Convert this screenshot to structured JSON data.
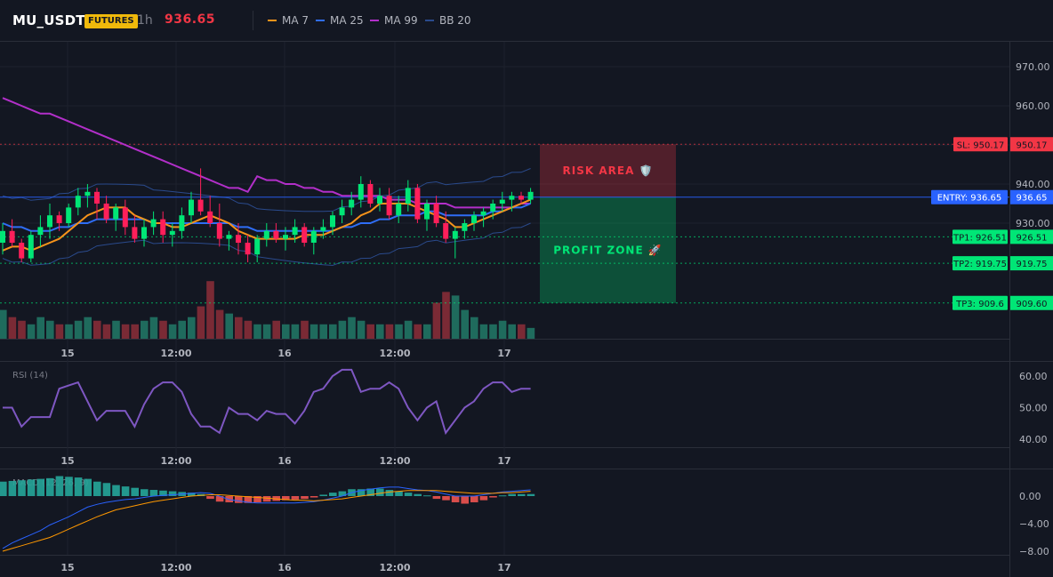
{
  "header": {
    "symbol": "MU_USDT",
    "badge": "FUTURES",
    "timeframe": "1h",
    "price": "936.65",
    "legend": [
      {
        "label": "MA 7",
        "color": "#f7931a"
      },
      {
        "label": "MA 25",
        "color": "#2f6df6"
      },
      {
        "label": "MA 99",
        "color": "#b22fc9"
      },
      {
        "label": "BB 20",
        "color": "#2a4a8c"
      }
    ]
  },
  "chart_data": {
    "type": "candlestick",
    "price_axis": {
      "ticks": [
        "970.00",
        "960.00",
        "950.00",
        "940.00",
        "930.00"
      ],
      "tick_values": [
        970,
        960,
        950,
        940,
        930
      ],
      "range": [
        909.6,
        972
      ]
    },
    "time_axis": {
      "labels": [
        "15",
        "12:00",
        "16",
        "12:00",
        "17"
      ]
    },
    "levels": [
      {
        "tag": "SL: 950.17",
        "value": "950.17",
        "price": 950.17,
        "color": "#f23645"
      },
      {
        "tag": "ENTRY: 936.65",
        "value": "936.65",
        "price": 936.65,
        "color": "#2962ff"
      },
      {
        "tag": "TP1: 926.51",
        "value": "926.51",
        "price": 926.51,
        "color": "#00e676"
      },
      {
        "tag": "TP2: 919.75",
        "value": "919.75",
        "price": 919.75,
        "color": "#00e676"
      },
      {
        "tag": "TP3: 909.6",
        "value": "909.60",
        "price": 909.6,
        "color": "#00e676"
      }
    ],
    "zones": [
      {
        "label": "RISK AREA 🛡️",
        "from": 936.65,
        "to": 950.17,
        "color": "#f23645"
      },
      {
        "label": "PROFIT ZONE 🚀",
        "from": 909.6,
        "to": 936.65,
        "color": "#00e676"
      }
    ],
    "candles": [
      [
        925,
        930,
        922,
        928
      ],
      [
        928,
        931,
        924,
        925
      ],
      [
        925,
        926,
        920,
        921
      ],
      [
        921,
        928,
        920,
        927
      ],
      [
        927,
        932,
        924,
        929
      ],
      [
        929,
        935,
        926,
        932
      ],
      [
        932,
        933,
        928,
        930
      ],
      [
        930,
        935,
        929,
        934
      ],
      [
        934,
        939,
        932,
        937
      ],
      [
        937,
        940,
        934,
        938
      ],
      [
        938,
        939,
        931,
        935
      ],
      [
        935,
        937,
        930,
        931
      ],
      [
        931,
        935,
        928,
        934
      ],
      [
        934,
        936,
        927,
        929
      ],
      [
        929,
        932,
        925,
        926
      ],
      [
        926,
        931,
        924,
        929
      ],
      [
        929,
        933,
        927,
        931
      ],
      [
        931,
        933,
        925,
        927
      ],
      [
        927,
        930,
        924,
        928
      ],
      [
        928,
        934,
        926,
        932
      ],
      [
        932,
        938,
        930,
        936
      ],
      [
        936,
        944,
        932,
        933
      ],
      [
        933,
        937,
        929,
        930
      ],
      [
        930,
        935,
        924,
        926
      ],
      [
        926,
        928,
        923,
        927
      ],
      [
        927,
        930,
        922,
        925
      ],
      [
        925,
        927,
        920,
        922
      ],
      [
        922,
        927,
        920,
        926
      ],
      [
        926,
        930,
        924,
        928
      ],
      [
        928,
        930,
        925,
        926
      ],
      [
        926,
        929,
        923,
        927
      ],
      [
        927,
        931,
        925,
        929
      ],
      [
        929,
        930,
        924,
        925
      ],
      [
        925,
        929,
        922,
        928
      ],
      [
        928,
        931,
        926,
        929
      ],
      [
        929,
        933,
        927,
        932
      ],
      [
        932,
        936,
        930,
        934
      ],
      [
        934,
        938,
        932,
        936
      ],
      [
        936,
        942,
        934,
        940
      ],
      [
        940,
        941,
        934,
        935
      ],
      [
        935,
        939,
        933,
        937
      ],
      [
        937,
        939,
        931,
        932
      ],
      [
        932,
        937,
        930,
        935
      ],
      [
        935,
        941,
        933,
        939
      ],
      [
        939,
        940,
        930,
        931
      ],
      [
        931,
        936,
        928,
        935
      ],
      [
        935,
        937,
        929,
        930
      ],
      [
        930,
        933,
        925,
        926
      ],
      [
        926,
        929,
        921,
        928
      ],
      [
        928,
        931,
        926,
        930
      ],
      [
        930,
        933,
        928,
        932
      ],
      [
        932,
        934,
        929,
        933
      ],
      [
        933,
        936,
        931,
        935
      ],
      [
        935,
        938,
        933,
        936
      ],
      [
        936,
        938,
        933,
        937
      ],
      [
        937,
        938,
        935,
        936
      ],
      [
        936,
        939,
        935,
        938
      ]
    ],
    "ma7": [
      923,
      924,
      924,
      923,
      924,
      925,
      926,
      928,
      930,
      932,
      933,
      934,
      934,
      934,
      932,
      931,
      930,
      930,
      929,
      929,
      930,
      931,
      932,
      931,
      930,
      928,
      927,
      926,
      926,
      926,
      926,
      926,
      927,
      927,
      927,
      928,
      929,
      930,
      932,
      933,
      935,
      935,
      935,
      935,
      934,
      933,
      932,
      931,
      929,
      929,
      930,
      931,
      932,
      933,
      934,
      935,
      936
    ],
    "ma25": [
      930,
      929,
      929,
      928,
      928,
      928,
      929,
      929,
      930,
      930,
      931,
      931,
      931,
      931,
      931,
      931,
      930,
      930,
      930,
      930,
      930,
      930,
      930,
      930,
      930,
      929,
      929,
      928,
      928,
      928,
      928,
      928,
      928,
      928,
      928,
      928,
      929,
      929,
      930,
      930,
      931,
      931,
      932,
      932,
      932,
      933,
      933,
      932,
      932,
      932,
      932,
      932,
      933,
      933,
      934,
      934,
      935
    ],
    "ma99": [
      962,
      961,
      960,
      959,
      958,
      958,
      957,
      956,
      955,
      954,
      953,
      952,
      951,
      950,
      949,
      948,
      947,
      946,
      945,
      944,
      943,
      942,
      941,
      940,
      939,
      939,
      938,
      942,
      941,
      941,
      940,
      940,
      939,
      939,
      938,
      938,
      937,
      937,
      937,
      937,
      937,
      936,
      936,
      936,
      935,
      935,
      935,
      935,
      934,
      934,
      934,
      934,
      934,
      934,
      934,
      935,
      935
    ],
    "volume": [
      8,
      6,
      5,
      4,
      6,
      5,
      4,
      4,
      5,
      6,
      5,
      4,
      5,
      4,
      4,
      5,
      6,
      5,
      4,
      5,
      6,
      9,
      16,
      8,
      7,
      6,
      5,
      4,
      4,
      5,
      4,
      4,
      5,
      4,
      4,
      4,
      5,
      6,
      5,
      4,
      4,
      4,
      4,
      5,
      4,
      4,
      10,
      13,
      12,
      8,
      6,
      4,
      4,
      5,
      4,
      4,
      3
    ],
    "rsi": {
      "label": "RSI (14)",
      "ticks": [
        "60.00",
        "50.00",
        "40.00"
      ],
      "tick_values": [
        60,
        50,
        40
      ],
      "values": [
        50,
        50,
        44,
        47,
        47,
        47,
        56,
        57,
        58,
        52,
        46,
        49,
        49,
        49,
        44,
        51,
        56,
        58,
        58,
        55,
        48,
        44,
        44,
        42,
        50,
        48,
        48,
        46,
        49,
        48,
        48,
        45,
        49,
        55,
        56,
        60,
        62,
        62,
        55,
        56,
        56,
        58,
        56,
        50,
        46,
        50,
        52,
        42,
        46,
        50,
        52,
        56,
        58,
        58,
        55,
        56,
        56
      ]
    },
    "macd": {
      "label": "MACD (12, 26, 9)",
      "ticks": [
        "0.00",
        "−4.00",
        "−8.00"
      ],
      "tick_values": [
        0,
        -4,
        -8
      ],
      "macd": [
        -7.6,
        -6.8,
        -6.2,
        -5.6,
        -5,
        -4.2,
        -3.6,
        -3,
        -2.3,
        -1.6,
        -1.2,
        -0.9,
        -0.7,
        -0.5,
        -0.4,
        -0.2,
        0,
        0.1,
        0.2,
        0.3,
        0.4,
        0.5,
        0.4,
        0,
        -0.5,
        -0.7,
        -0.9,
        -1,
        -1,
        -1,
        -1,
        -1,
        -0.9,
        -0.8,
        -0.6,
        -0.3,
        0,
        0.5,
        0.8,
        1,
        1.2,
        1.3,
        1.3,
        1.1,
        0.9,
        0.8,
        0.6,
        0.3,
        0,
        0,
        0,
        0.2,
        0.4,
        0.6,
        0.7,
        0.8,
        0.9
      ],
      "signal": [
        -8,
        -7.6,
        -7.2,
        -6.8,
        -6.4,
        -6,
        -5.4,
        -4.8,
        -4.2,
        -3.6,
        -3,
        -2.5,
        -2,
        -1.7,
        -1.4,
        -1.1,
        -0.8,
        -0.6,
        -0.4,
        -0.2,
        0,
        0.1,
        0.2,
        0.2,
        0.1,
        0,
        -0.1,
        -0.2,
        -0.3,
        -0.4,
        -0.5,
        -0.6,
        -0.6,
        -0.7,
        -0.6,
        -0.5,
        -0.4,
        -0.2,
        0,
        0.2,
        0.4,
        0.6,
        0.7,
        0.8,
        0.8,
        0.8,
        0.8,
        0.7,
        0.6,
        0.5,
        0.4,
        0.4,
        0.4,
        0.5,
        0.5,
        0.6,
        0.7
      ],
      "histogram": [
        2.1,
        2.2,
        2.3,
        2.4,
        2.5,
        2.6,
        2.9,
        2.8,
        2.7,
        2.5,
        2.1,
        1.9,
        1.6,
        1.4,
        1.2,
        1,
        0.9,
        0.8,
        0.7,
        0.6,
        0.5,
        0.3,
        -0.4,
        -0.8,
        -0.9,
        -1,
        -1,
        -0.9,
        -0.8,
        -0.7,
        -0.6,
        -0.5,
        -0.4,
        -0.2,
        0.2,
        0.5,
        0.7,
        1,
        1,
        1.1,
        1.1,
        0.9,
        0.7,
        0.5,
        0.3,
        0.1,
        -0.4,
        -0.6,
        -0.9,
        -1.1,
        -0.9,
        -0.6,
        -0.2,
        0.1,
        0.3,
        0.3,
        0.3
      ]
    }
  }
}
